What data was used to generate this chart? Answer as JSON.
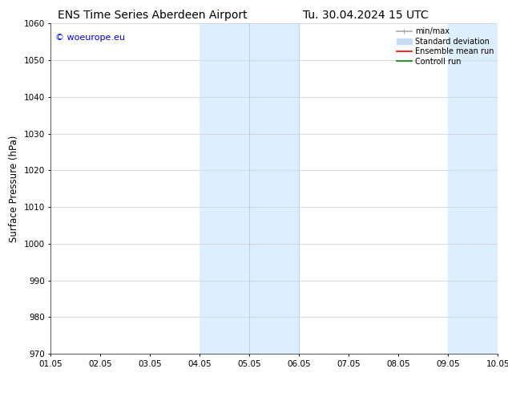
{
  "title_left": "ENS Time Series Aberdeen Airport",
  "title_right": "Tu. 30.04.2024 15 UTC",
  "ylabel": "Surface Pressure (hPa)",
  "ylim": [
    970,
    1060
  ],
  "yticks": [
    970,
    980,
    990,
    1000,
    1010,
    1020,
    1030,
    1040,
    1050,
    1060
  ],
  "xlabel_ticks": [
    "01.05",
    "02.05",
    "03.05",
    "04.05",
    "05.05",
    "06.05",
    "07.05",
    "08.05",
    "09.05",
    "10.05"
  ],
  "x_num_ticks": 10,
  "xlim": [
    0,
    9
  ],
  "shaded_regions": [
    {
      "x_start": 3.0,
      "x_end": 5.0,
      "color": "#ddeeff"
    },
    {
      "x_start": 8.0,
      "x_end": 9.5,
      "color": "#ddeeff"
    }
  ],
  "vertical_lines": [
    {
      "x": 4.0,
      "color": "#b8d0e8",
      "lw": 0.8
    },
    {
      "x": 5.0,
      "color": "#b8d0e8",
      "lw": 0.8
    },
    {
      "x": 9.0,
      "color": "#b8d0e8",
      "lw": 0.8
    }
  ],
  "watermark_text": "© woeurope.eu",
  "watermark_color": "#0000cc",
  "legend_items": [
    {
      "label": "min/max",
      "color": "#aaaaaa",
      "lw": 1.2
    },
    {
      "label": "Standard deviation",
      "color": "#c8ddf0",
      "lw": 7
    },
    {
      "label": "Ensemble mean run",
      "color": "#ff0000",
      "lw": 1.2
    },
    {
      "label": "Controll run",
      "color": "#008800",
      "lw": 1.2
    }
  ],
  "bg_color": "#ffffff",
  "grid_color": "#cccccc",
  "title_fontsize": 10,
  "tick_fontsize": 7.5,
  "ylabel_fontsize": 8.5,
  "legend_fontsize": 7,
  "watermark_fontsize": 8
}
